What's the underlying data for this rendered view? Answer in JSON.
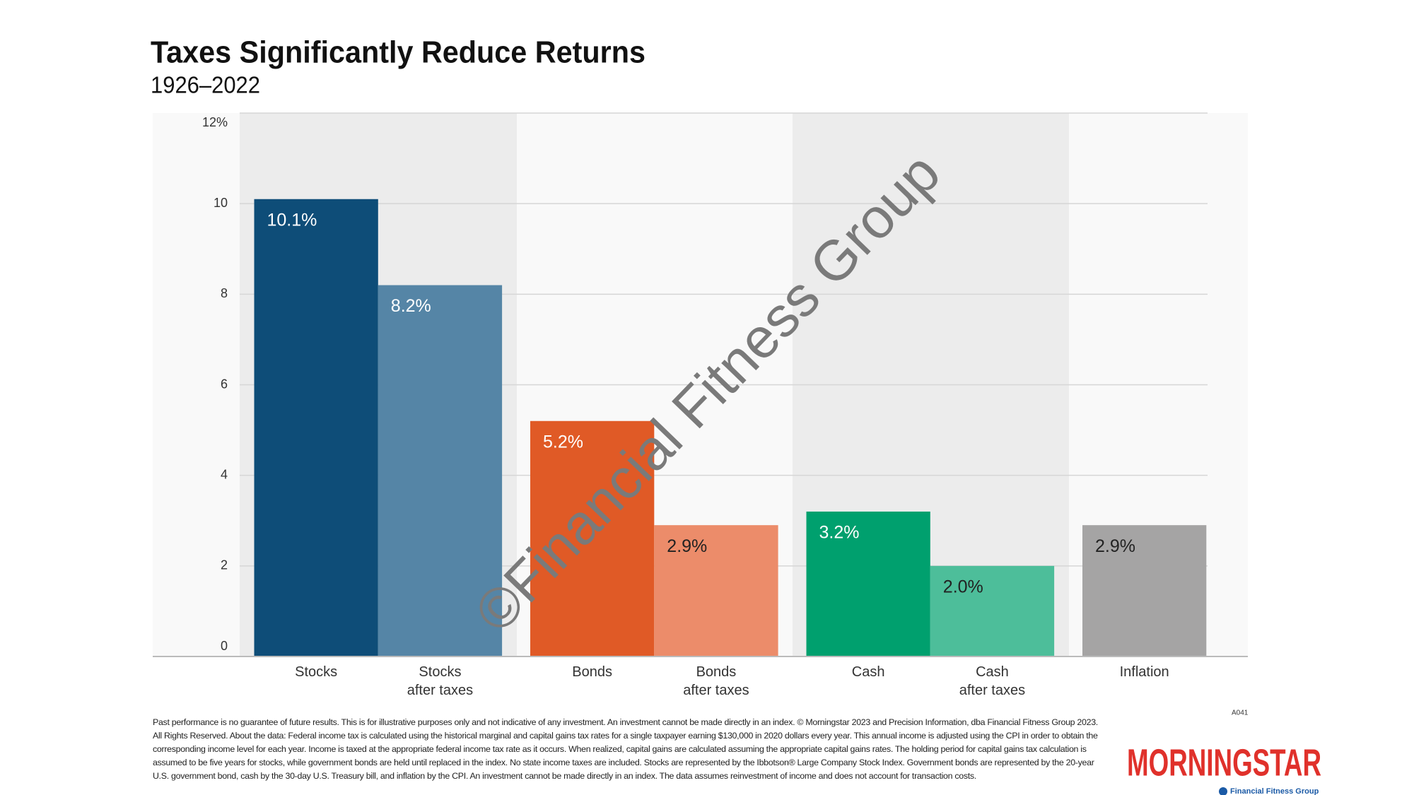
{
  "chart_data": {
    "type": "bar",
    "title": "Taxes Significantly Reduce Returns",
    "subtitle": "1926–2022",
    "categories": [
      "Stocks",
      "Stocks\nafter taxes",
      "Bonds",
      "Bonds\nafter taxes",
      "Cash",
      "Cash\nafter taxes",
      "Inflation"
    ],
    "values": [
      10.1,
      8.2,
      5.2,
      2.9,
      3.2,
      2.0,
      2.9
    ],
    "value_labels": [
      "10.1%",
      "8.2%",
      "5.2%",
      "2.9%",
      "3.2%",
      "2.0%",
      "2.9%"
    ],
    "colors": [
      "#0e4d78",
      "#5585a6",
      "#e05a26",
      "#ec8c6a",
      "#00a06e",
      "#4dbe9a",
      "#a5a4a4"
    ],
    "label_colors": [
      "#ffffff",
      "#ffffff",
      "#ffffff",
      "#222222",
      "#ffffff",
      "#222222",
      "#222222"
    ],
    "ylim": [
      0,
      12
    ],
    "yticks": [
      0,
      2,
      4,
      6,
      8,
      10,
      {
        "value": 12,
        "label": "12%"
      }
    ],
    "grid": true
  },
  "watermark": "©Financial Fitness Group",
  "code": "A041",
  "footnote": "Past performance is no guarantee of future results. This is for illustrative purposes only and not indicative of any investment. An investment cannot be made directly in an index. © Morningstar 2023 and Precision Information, dba Financial Fitness Group 2023. All Rights Reserved. About the data: Federal income tax is calculated using the historical marginal and capital gains tax rates for a single taxpayer earning $130,000 in 2020 dollars every year. This annual income is adjusted using the CPI in order to obtain the corresponding income level for each year. Income is taxed at the appropriate federal income tax rate as it occurs. When realized, capital gains are calculated assuming the appropriate capital gains rates. The holding period for capital gains tax calculation is assumed to be five years for stocks, while government bonds are held until replaced in the index. No state income taxes are included. Stocks are represented by the Ibbotson® Large Company Stock Index. Government bonds are represented by the 20-year U.S. government bond, cash by the 30-day U.S. Treasury bill, and inflation by the CPI. An investment cannot be made directly in an index. The data assumes reinvestment of income and does not account for transaction costs.",
  "logo": {
    "brand": "MORNINGSTAR",
    "partner": "Financial Fitness Group"
  }
}
